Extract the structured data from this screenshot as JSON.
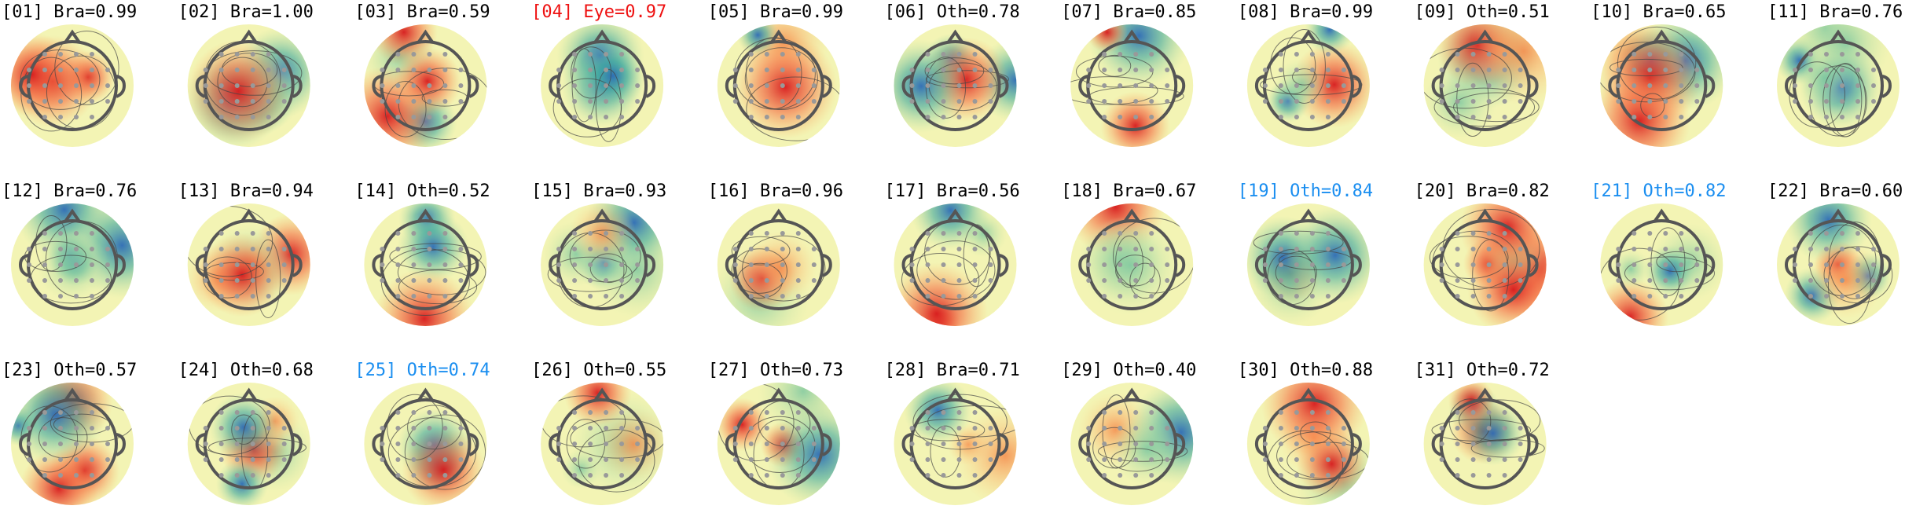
{
  "components": [
    {
      "label": "[01] Bra=0.99",
      "color": "#000000"
    },
    {
      "label": "[02] Bra=1.00",
      "color": "#000000"
    },
    {
      "label": "[03] Bra=0.59",
      "color": "#000000"
    },
    {
      "label": "[04] Eye=0.97",
      "color": "#ee1111"
    },
    {
      "label": "[05] Bra=0.99",
      "color": "#000000"
    },
    {
      "label": "[06] Oth=0.78",
      "color": "#000000"
    },
    {
      "label": "[07] Bra=0.85",
      "color": "#000000"
    },
    {
      "label": "[08] Bra=0.99",
      "color": "#000000"
    },
    {
      "label": "[09] Oth=0.51",
      "color": "#000000"
    },
    {
      "label": "[10] Bra=0.65",
      "color": "#000000"
    },
    {
      "label": "[11] Bra=0.76",
      "color": "#000000"
    },
    {
      "label": "[12] Bra=0.76",
      "color": "#000000"
    },
    {
      "label": "[13] Bra=0.94",
      "color": "#000000"
    },
    {
      "label": "[14] Oth=0.52",
      "color": "#000000"
    },
    {
      "label": "[15] Bra=0.93",
      "color": "#000000"
    },
    {
      "label": "[16] Bra=0.96",
      "color": "#000000"
    },
    {
      "label": "[17] Bra=0.56",
      "color": "#000000"
    },
    {
      "label": "[18] Bra=0.67",
      "color": "#000000"
    },
    {
      "label": "[19] Oth=0.84",
      "color": "#1a8ef0"
    },
    {
      "label": "[20] Bra=0.82",
      "color": "#000000"
    },
    {
      "label": "[21] Oth=0.82",
      "color": "#1a8ef0"
    },
    {
      "label": "[22] Bra=0.60",
      "color": "#000000"
    },
    {
      "label": "[23] Oth=0.57",
      "color": "#000000"
    },
    {
      "label": "[24] Oth=0.68",
      "color": "#000000"
    },
    {
      "label": "[25] Oth=0.74",
      "color": "#1a8ef0"
    },
    {
      "label": "[26] Oth=0.55",
      "color": "#000000"
    },
    {
      "label": "[27] Oth=0.73",
      "color": "#000000"
    },
    {
      "label": "[28] Bra=0.71",
      "color": "#000000"
    },
    {
      "label": "[29] Oth=0.40",
      "color": "#000000"
    },
    {
      "label": "[30] Oth=0.88",
      "color": "#000000"
    },
    {
      "label": "[31] Oth=0.72",
      "color": "#000000"
    }
  ]
}
